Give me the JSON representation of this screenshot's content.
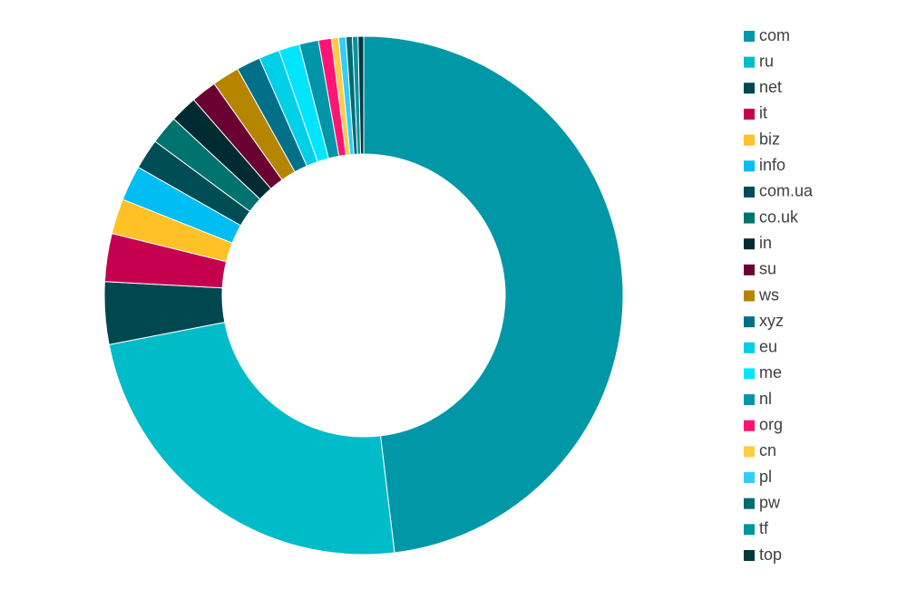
{
  "chart_data": {
    "type": "doughnut",
    "categories": [
      "com",
      "ru",
      "net",
      "it",
      "biz",
      "info",
      "com.ua",
      "co.uk",
      "in",
      "su",
      "ws",
      "xyz",
      "eu",
      "me",
      "nl",
      "org",
      "cn",
      "pl",
      "pw",
      "tf",
      "top"
    ],
    "values": [
      48.2,
      23.9,
      3.9,
      3.0,
      2.2,
      2.2,
      1.9,
      1.8,
      1.7,
      1.6,
      1.7,
      1.5,
      1.3,
      1.3,
      1.2,
      0.8,
      0.45,
      0.45,
      0.4,
      0.35,
      0.35
    ],
    "colors": [
      "#0097a7",
      "#00bcc8",
      "#00474f",
      "#c5004f",
      "#ffc125",
      "#00bdf2",
      "#004d55",
      "#00736f",
      "#002b33",
      "#6b0033",
      "#b58500",
      "#00708a",
      "#00cfe8",
      "#00e5ff",
      "#0095a8",
      "#ff1473",
      "#ffcc44",
      "#33ccff",
      "#006b70",
      "#0094a0",
      "#003840"
    ],
    "legend": "right"
  }
}
